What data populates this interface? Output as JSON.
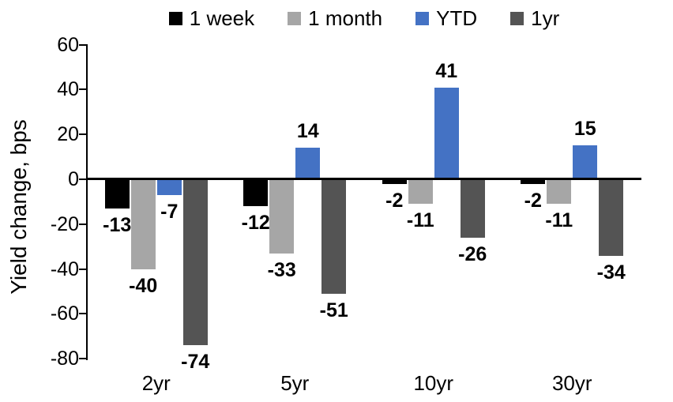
{
  "chart_data": {
    "type": "bar",
    "title": "",
    "ylabel": "Yield change, bps",
    "xlabel": "",
    "categories": [
      "2yr",
      "5yr",
      "10yr",
      "30yr"
    ],
    "series": [
      {
        "name": "1 week",
        "color": "#000000",
        "values": [
          -13,
          -12,
          -2,
          -2
        ]
      },
      {
        "name": "1 month",
        "color": "#A6A6A6",
        "values": [
          -40,
          -33,
          -11,
          -11
        ]
      },
      {
        "name": "YTD",
        "color": "#4472C4",
        "values": [
          -7,
          14,
          41,
          15
        ]
      },
      {
        "name": "1yr",
        "color": "#545454",
        "values": [
          -74,
          -51,
          -26,
          -34
        ]
      }
    ],
    "ylim": [
      -80,
      60
    ],
    "yticks": [
      60,
      40,
      20,
      0,
      -20,
      -40,
      -60,
      -80
    ],
    "grid": "off",
    "legend_position": "top",
    "axis_color": "#000000"
  }
}
